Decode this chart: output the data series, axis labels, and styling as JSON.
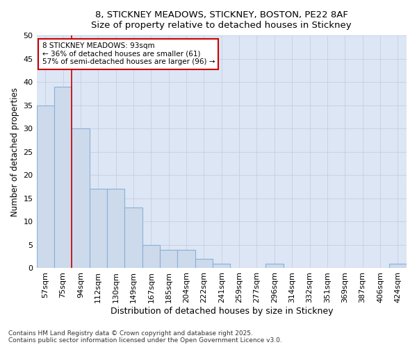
{
  "title_line1": "8, STICKNEY MEADOWS, STICKNEY, BOSTON, PE22 8AF",
  "title_line2": "Size of property relative to detached houses in Stickney",
  "xlabel": "Distribution of detached houses by size in Stickney",
  "ylabel": "Number of detached properties",
  "categories": [
    "57sqm",
    "75sqm",
    "94sqm",
    "112sqm",
    "130sqm",
    "149sqm",
    "167sqm",
    "185sqm",
    "204sqm",
    "222sqm",
    "241sqm",
    "259sqm",
    "277sqm",
    "296sqm",
    "314sqm",
    "332sqm",
    "351sqm",
    "369sqm",
    "387sqm",
    "406sqm",
    "424sqm"
  ],
  "values": [
    35,
    39,
    30,
    17,
    17,
    13,
    5,
    4,
    4,
    2,
    1,
    0,
    0,
    1,
    0,
    0,
    0,
    0,
    0,
    0,
    1
  ],
  "bar_color": "#ccdaec",
  "bar_edge_color": "#8bafd4",
  "grid_color": "#c5cfe0",
  "plot_bg_color": "#dce6f5",
  "fig_bg_color": "#ffffff",
  "annotation_box_text": "8 STICKNEY MEADOWS: 93sqm\n← 36% of detached houses are smaller (61)\n57% of semi-detached houses are larger (96) →",
  "annotation_box_color": "#cc0000",
  "vline_pos": 1.5,
  "ylim": [
    0,
    50
  ],
  "yticks": [
    0,
    5,
    10,
    15,
    20,
    25,
    30,
    35,
    40,
    45,
    50
  ],
  "footer_line1": "Contains HM Land Registry data © Crown copyright and database right 2025.",
  "footer_line2": "Contains public sector information licensed under the Open Government Licence v3.0."
}
